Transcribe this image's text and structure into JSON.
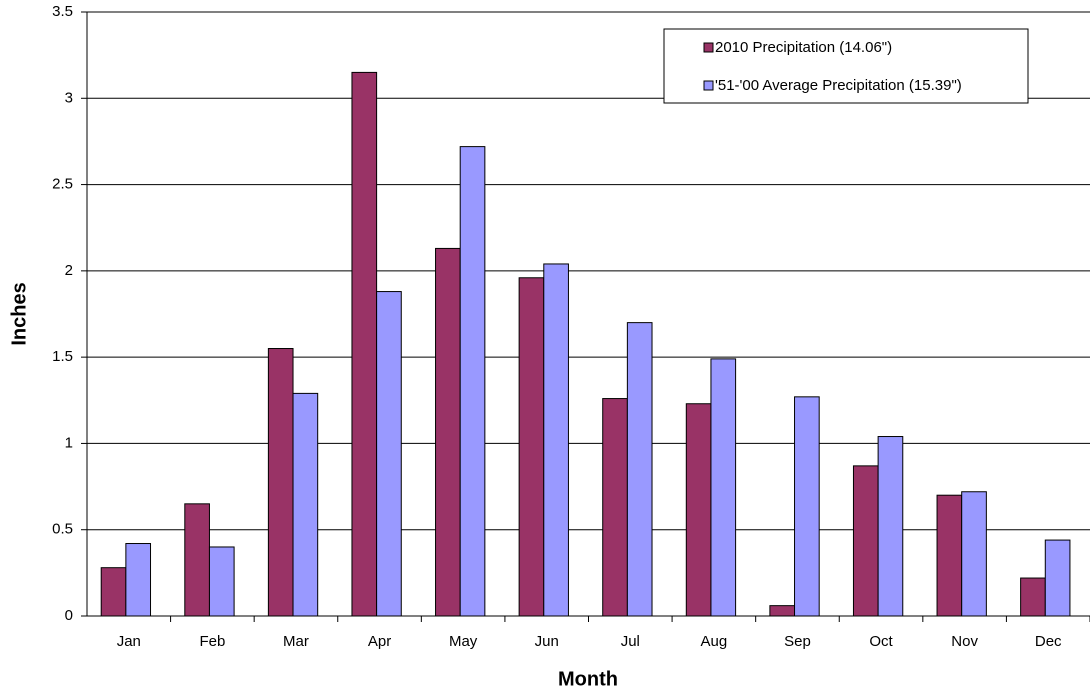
{
  "chart_data": {
    "type": "bar",
    "categories": [
      "Jan",
      "Feb",
      "Mar",
      "Apr",
      "May",
      "Jun",
      "Jul",
      "Aug",
      "Sep",
      "Oct",
      "Nov",
      "Dec"
    ],
    "series": [
      {
        "name": "2010 Precipitation (14.06\")",
        "color": "#993366",
        "values": [
          0.28,
          0.65,
          1.55,
          3.15,
          2.13,
          1.96,
          1.26,
          1.23,
          0.06,
          0.87,
          0.7,
          0.22
        ]
      },
      {
        "name": "'51-'00 Average Precipitation (15.39\")",
        "color": "#9999ff",
        "values": [
          0.42,
          0.4,
          1.29,
          1.88,
          2.72,
          2.04,
          1.7,
          1.49,
          1.27,
          1.04,
          0.72,
          0.44
        ]
      }
    ],
    "ylabel": "Inches",
    "xlabel": "Month",
    "ylim": [
      0,
      3.5
    ],
    "yticks": [
      0,
      0.5,
      1,
      1.5,
      2,
      2.5,
      3,
      3.5
    ],
    "grid": true,
    "legend": "upper right"
  }
}
